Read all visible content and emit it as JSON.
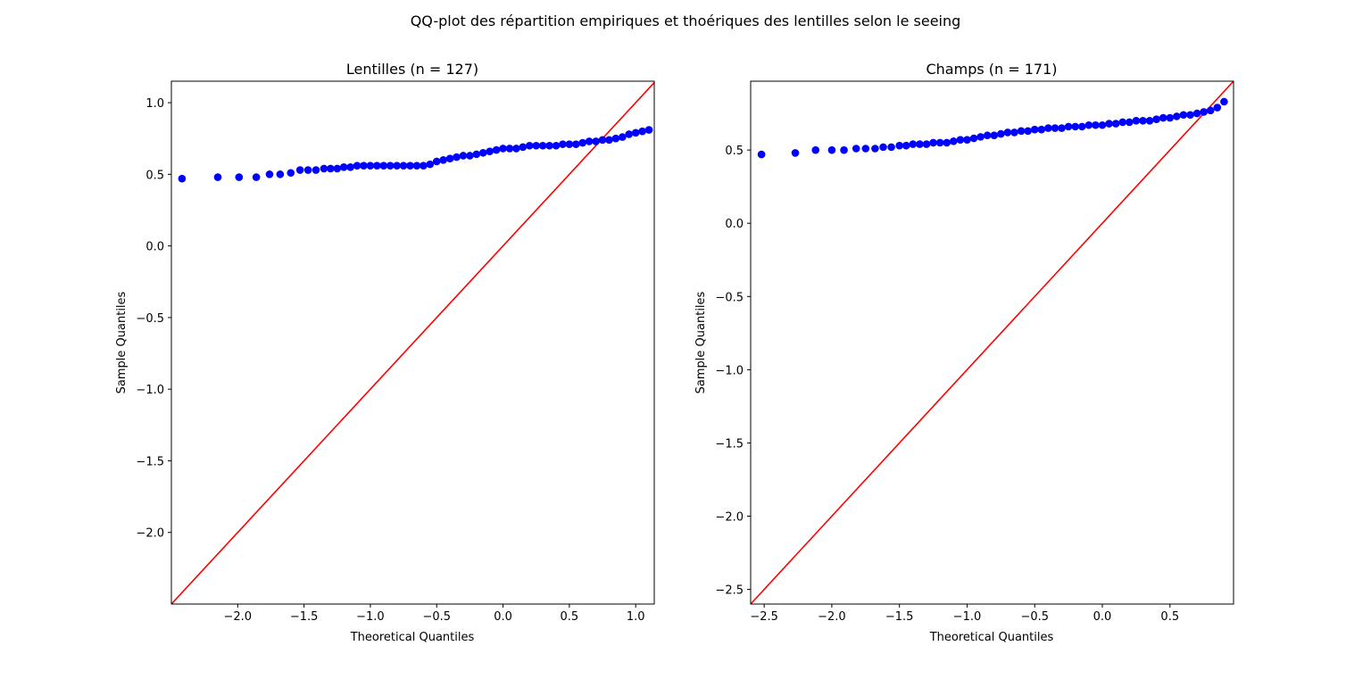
{
  "figure": {
    "suptitle": "QQ-plot des répartition empiriques et thoériques des lentilles selon le seeing"
  },
  "colors": {
    "points": "#0000ff",
    "line": "#ff0000",
    "axes": "#000000",
    "background": "#ffffff"
  },
  "chart_data": [
    {
      "type": "scatter",
      "title": "Lentilles (n = 127)",
      "xlabel": "Theoretical Quantiles",
      "ylabel": "Sample Quantiles",
      "xlim": [
        -2.5,
        1.14
      ],
      "ylim": [
        -2.5,
        1.15
      ],
      "xticks": [
        -2.0,
        -1.5,
        -1.0,
        -0.5,
        0.0,
        0.5,
        1.0
      ],
      "xtick_labels": [
        "−2.0",
        "−1.5",
        "−1.0",
        "−0.5",
        "0.0",
        "0.5",
        "1.0"
      ],
      "yticks": [
        -2.0,
        -1.5,
        -1.0,
        -0.5,
        0.0,
        0.5,
        1.0
      ],
      "ytick_labels": [
        "−2.0",
        "−1.5",
        "−1.0",
        "−0.5",
        "0.0",
        "0.5",
        "1.0"
      ],
      "grid": false,
      "reference_line": {
        "type": "45-degree",
        "x": [
          -2.5,
          1.14
        ],
        "y": [
          -2.5,
          1.14
        ]
      },
      "series": [
        {
          "x": [
            -2.42,
            -2.15,
            -1.99,
            -1.86,
            -1.76,
            -1.68,
            -1.6,
            -1.53,
            -1.47,
            -1.41,
            -1.35,
            -1.3,
            -1.25,
            -1.2,
            -1.15,
            -1.1,
            -1.05,
            -1.0,
            -0.95,
            -0.9,
            -0.85,
            -0.8,
            -0.75,
            -0.7,
            -0.65,
            -0.6,
            -0.55,
            -0.5,
            -0.45,
            -0.4,
            -0.35,
            -0.3,
            -0.25,
            -0.2,
            -0.15,
            -0.1,
            -0.05,
            0.0,
            0.05,
            0.1,
            0.15,
            0.2,
            0.25,
            0.3,
            0.35,
            0.4,
            0.45,
            0.5,
            0.55,
            0.6,
            0.65,
            0.7,
            0.75,
            0.8,
            0.85,
            0.9,
            0.95,
            1.0,
            1.05,
            1.1
          ],
          "y": [
            0.47,
            0.48,
            0.48,
            0.48,
            0.5,
            0.5,
            0.51,
            0.53,
            0.53,
            0.53,
            0.54,
            0.54,
            0.54,
            0.55,
            0.55,
            0.56,
            0.56,
            0.56,
            0.56,
            0.56,
            0.56,
            0.56,
            0.56,
            0.56,
            0.56,
            0.56,
            0.57,
            0.59,
            0.6,
            0.61,
            0.62,
            0.63,
            0.63,
            0.64,
            0.65,
            0.66,
            0.67,
            0.68,
            0.68,
            0.68,
            0.69,
            0.7,
            0.7,
            0.7,
            0.7,
            0.7,
            0.71,
            0.71,
            0.71,
            0.72,
            0.73,
            0.73,
            0.74,
            0.74,
            0.75,
            0.76,
            0.78,
            0.79,
            0.8,
            0.81
          ]
        }
      ]
    },
    {
      "type": "scatter",
      "title": "Champs (n = 171)",
      "xlabel": "Theoretical Quantiles",
      "ylabel": "Sample Quantiles",
      "xlim": [
        -2.6,
        0.97
      ],
      "ylim": [
        -2.6,
        0.97
      ],
      "xticks": [
        -2.5,
        -2.0,
        -1.5,
        -1.0,
        -0.5,
        0.0,
        0.5
      ],
      "xtick_labels": [
        "−2.5",
        "−2.0",
        "−1.5",
        "−1.0",
        "−0.5",
        "0.0",
        "0.5"
      ],
      "yticks": [
        -2.5,
        -2.0,
        -1.5,
        -1.0,
        -0.5,
        0.0,
        0.5
      ],
      "ytick_labels": [
        "−2.5",
        "−2.0",
        "−1.5",
        "−1.0",
        "−0.5",
        "0.0",
        "0.5"
      ],
      "grid": false,
      "reference_line": {
        "type": "45-degree",
        "x": [
          -2.6,
          0.97
        ],
        "y": [
          -2.6,
          0.97
        ]
      },
      "series": [
        {
          "x": [
            -2.52,
            -2.27,
            -2.12,
            -2.0,
            -1.91,
            -1.82,
            -1.75,
            -1.68,
            -1.62,
            -1.56,
            -1.5,
            -1.45,
            -1.4,
            -1.35,
            -1.3,
            -1.25,
            -1.2,
            -1.15,
            -1.1,
            -1.05,
            -1.0,
            -0.95,
            -0.9,
            -0.85,
            -0.8,
            -0.75,
            -0.7,
            -0.65,
            -0.6,
            -0.55,
            -0.5,
            -0.45,
            -0.4,
            -0.35,
            -0.3,
            -0.25,
            -0.2,
            -0.15,
            -0.1,
            -0.05,
            0.0,
            0.05,
            0.1,
            0.15,
            0.2,
            0.25,
            0.3,
            0.35,
            0.4,
            0.45,
            0.5,
            0.55,
            0.6,
            0.65,
            0.7,
            0.75,
            0.8,
            0.85,
            0.9
          ],
          "y": [
            0.47,
            0.48,
            0.5,
            0.5,
            0.5,
            0.51,
            0.51,
            0.51,
            0.52,
            0.52,
            0.53,
            0.53,
            0.54,
            0.54,
            0.54,
            0.55,
            0.55,
            0.55,
            0.56,
            0.57,
            0.57,
            0.58,
            0.59,
            0.6,
            0.6,
            0.61,
            0.62,
            0.62,
            0.63,
            0.63,
            0.64,
            0.64,
            0.65,
            0.65,
            0.65,
            0.66,
            0.66,
            0.66,
            0.67,
            0.67,
            0.67,
            0.68,
            0.68,
            0.69,
            0.69,
            0.7,
            0.7,
            0.7,
            0.71,
            0.72,
            0.72,
            0.73,
            0.74,
            0.74,
            0.75,
            0.76,
            0.77,
            0.79,
            0.83
          ]
        }
      ]
    }
  ]
}
